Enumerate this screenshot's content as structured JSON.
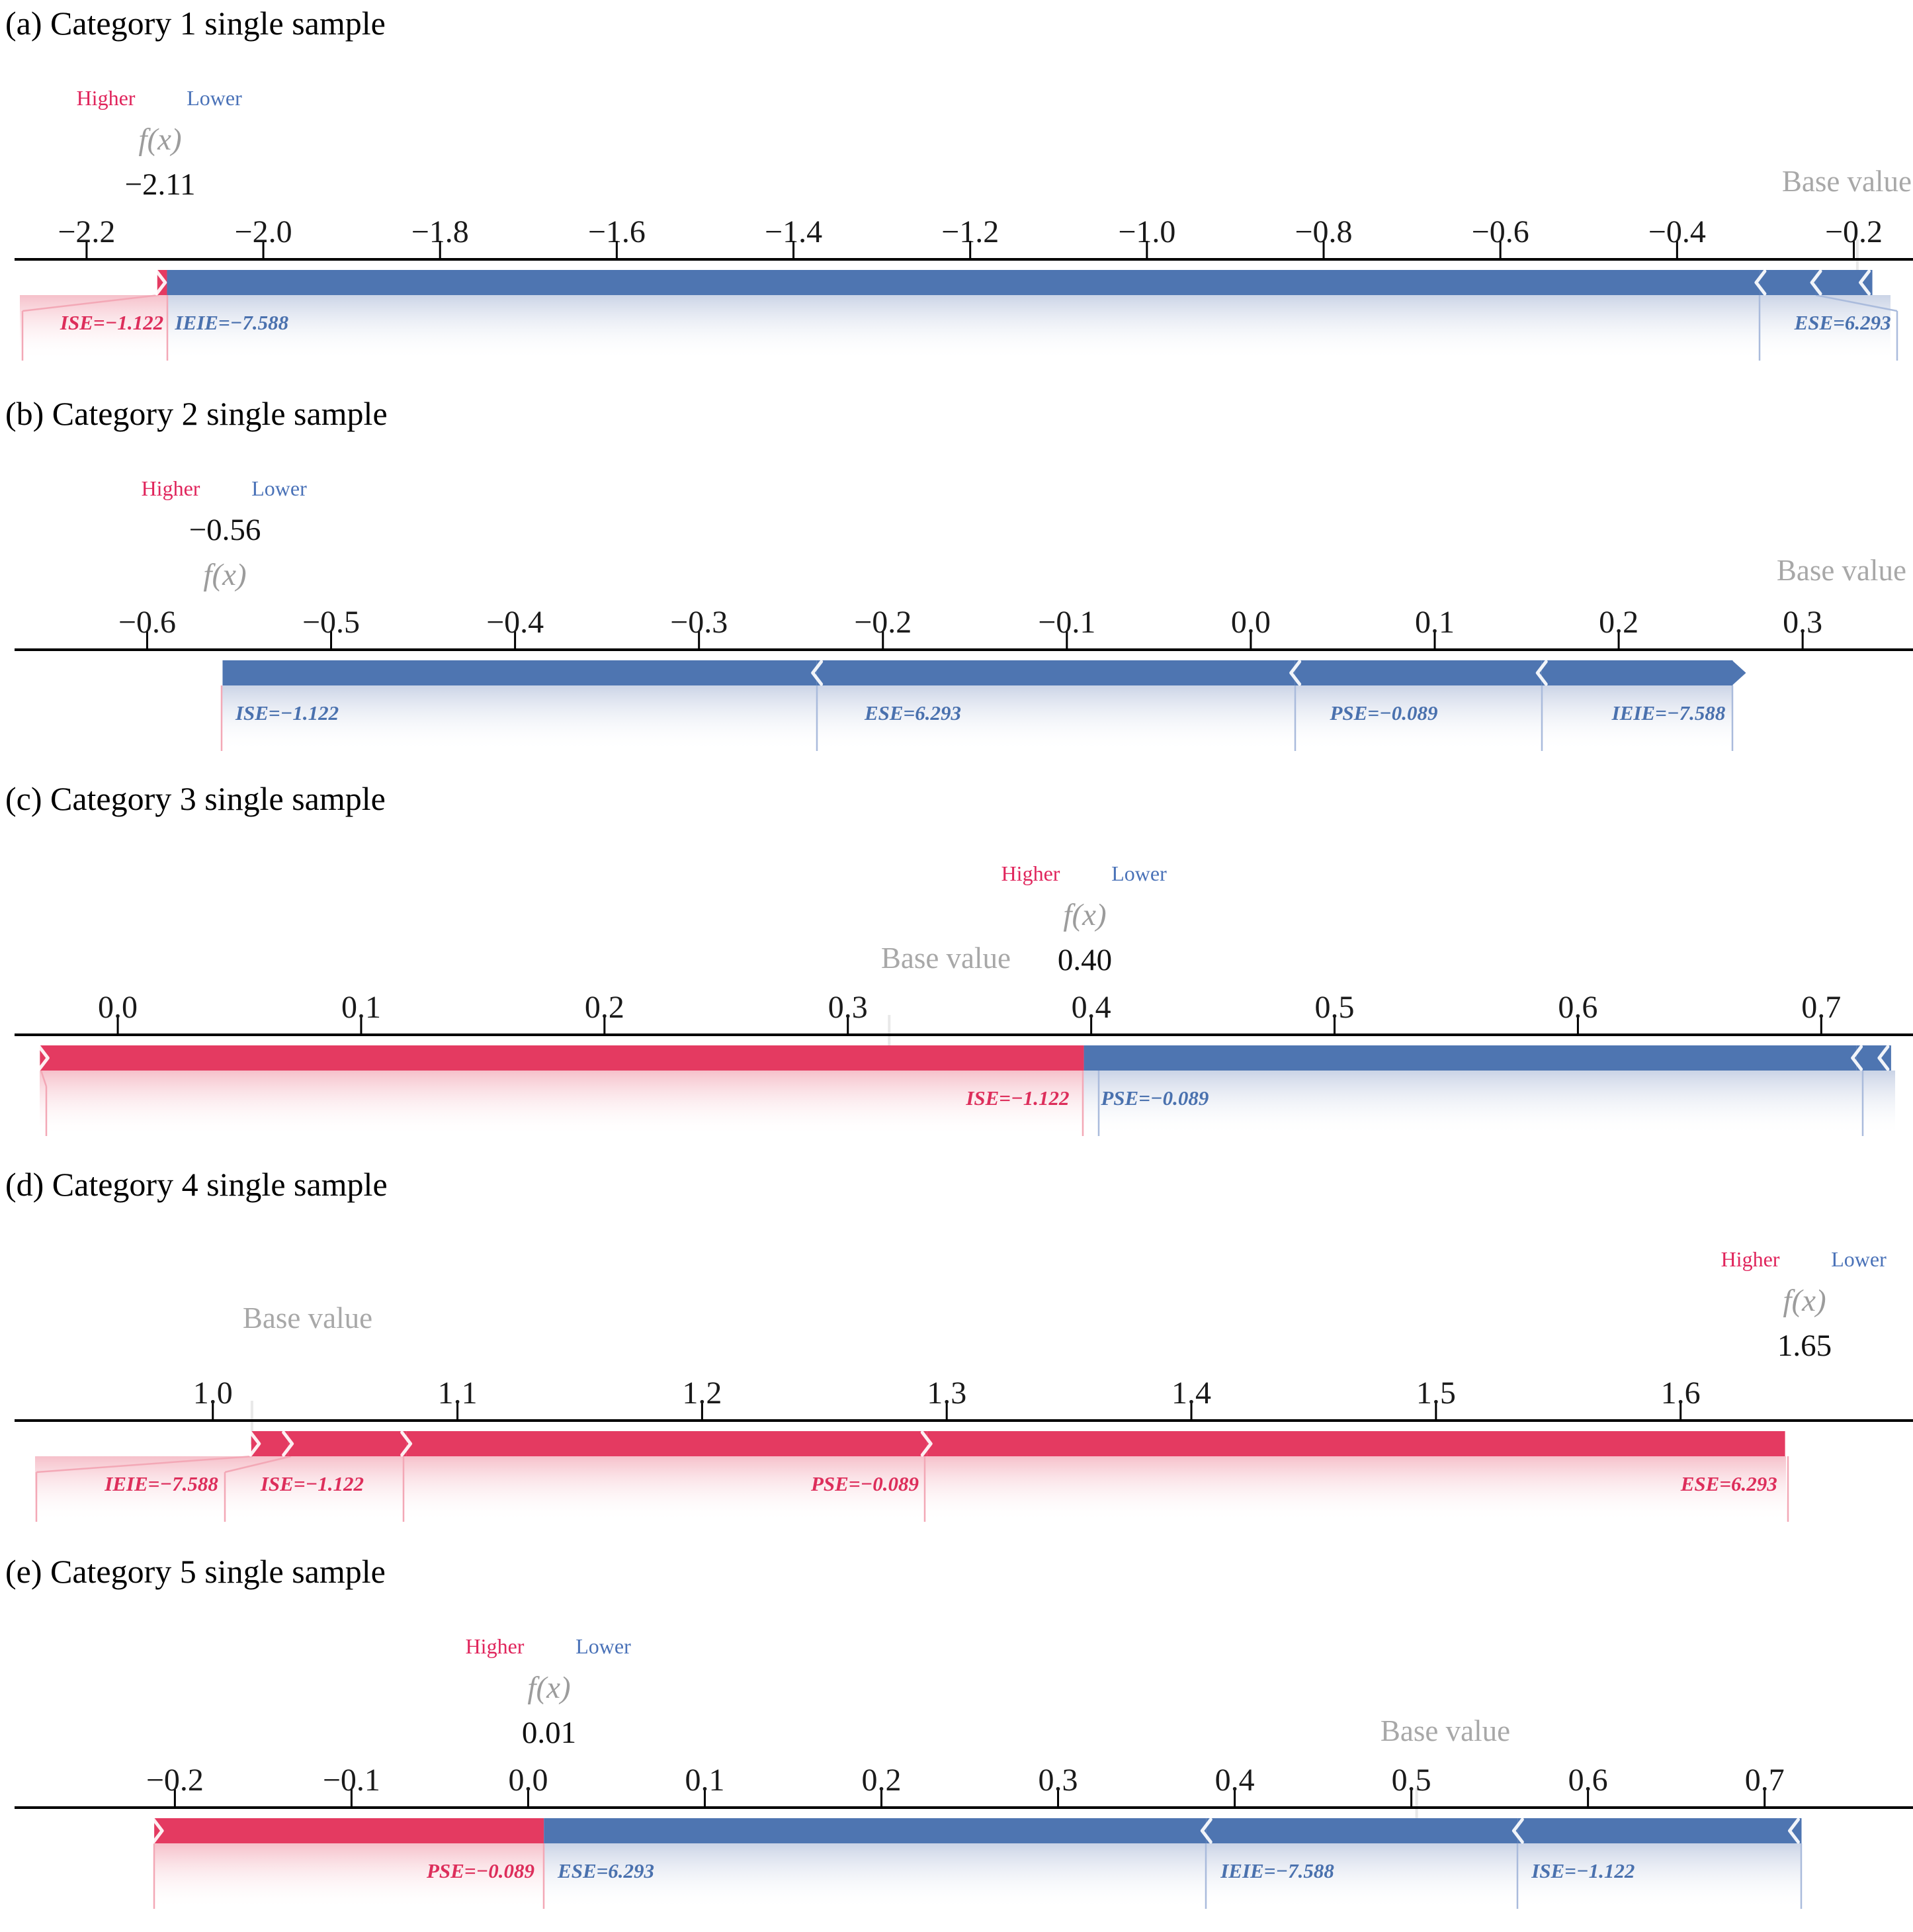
{
  "legend": {
    "higher": "Higher",
    "lower": "Lower",
    "fx_label": "f(x)",
    "base_label": "Base value"
  },
  "colors": {
    "bar_red": "#e43a61",
    "bar_blue": "#4e75b1",
    "text_red": "#dd2e5b",
    "text_blue": "#4a71ae",
    "line_red": "#f3a8b6",
    "line_blue": "#aabbdc",
    "fade_red": "rgba(238,140,158,0.55)",
    "fade_blue": "rgba(150,168,205,0.50)",
    "gray": "#a8a8a8",
    "base_marker": "#e9e9e9"
  },
  "chart_data": {
    "type": "force-plot-multi",
    "features": {
      "ISE": -1.122,
      "ESE": 6.293,
      "PSE": -0.089,
      "IEIE": -7.588
    },
    "panels": [
      {
        "title": "(a) Category 1 single sample",
        "fx": "−2.11",
        "axis": {
          "v0": -2.298,
          "v1": -0.133,
          "base_marker_v": -0.196,
          "ticks": [
            {
              "v": -2.2,
              "label": "−2.2"
            },
            {
              "v": -2.0,
              "label": "−2.0"
            },
            {
              "v": -1.8,
              "label": "−1.8"
            },
            {
              "v": -1.6,
              "label": "−1.6"
            },
            {
              "v": -1.4,
              "label": "−1.4"
            },
            {
              "v": -1.2,
              "label": "−1.2"
            },
            {
              "v": -1.0,
              "label": "−1.0"
            },
            {
              "v": -0.8,
              "label": "−0.8"
            },
            {
              "v": -0.6,
              "label": "−0.6"
            },
            {
              "v": -0.4,
              "label": "−0.4"
            },
            {
              "v": -0.2,
              "label": "−0.2"
            }
          ]
        },
        "segments": [
          {
            "label": "ISE=−1.122",
            "color": "red",
            "from": -2.12,
            "to": -2.109,
            "start": "cut",
            "text_x": -2.113,
            "text_anchor": "end"
          },
          {
            "label": "IEIE=−7.588",
            "color": "blue",
            "from": -2.109,
            "to": -0.306,
            "text_x": -2.1,
            "text_anchor": "start"
          },
          {
            "label": "ESE=6.293",
            "color": "blue",
            "from": -0.306,
            "to": -0.243,
            "text_x": -0.158,
            "text_anchor": "end"
          },
          {
            "label": "",
            "color": "blue",
            "from": -0.243,
            "to": -0.179,
            "end": "cut"
          }
        ]
      },
      {
        "title": "(b) Category 2 single sample",
        "fx": "−0.56",
        "axis": {
          "v0": -0.68,
          "v1": 0.36,
          "base_marker_v": null,
          "ticks": [
            {
              "v": -0.6,
              "label": "−0.6"
            },
            {
              "v": -0.5,
              "label": "−0.5"
            },
            {
              "v": -0.4,
              "label": "−0.4"
            },
            {
              "v": -0.3,
              "label": "−0.3"
            },
            {
              "v": -0.2,
              "label": "−0.2"
            },
            {
              "v": -0.1,
              "label": "−0.1"
            },
            {
              "v": 0.0,
              "label": "0.0"
            },
            {
              "v": 0.1,
              "label": "0.1"
            },
            {
              "v": 0.2,
              "label": "0.2"
            },
            {
              "v": 0.3,
              "label": "0.3"
            }
          ]
        },
        "segments": [
          {
            "label": "ISE=−1.122",
            "color": "blue",
            "from": -0.559,
            "to": -0.236,
            "text_x": -0.552,
            "text_anchor": "start"
          },
          {
            "label": "ESE=6.293",
            "color": "blue",
            "from": -0.236,
            "to": 0.024,
            "text_x": -0.21,
            "text_anchor": "start"
          },
          {
            "label": "PSE=−0.089",
            "color": "blue",
            "from": 0.024,
            "to": 0.158,
            "text_x": 0.043,
            "text_anchor": "start"
          },
          {
            "label": "IEIE=−7.588",
            "color": "blue",
            "from": 0.158,
            "to": 0.262,
            "end": "tip",
            "text_x": 0.258,
            "text_anchor": "end"
          }
        ]
      },
      {
        "title": "(c) Category 3 single sample",
        "fx": "0.40",
        "axis": {
          "v0": -0.0484,
          "v1": 0.7377,
          "base_marker_v": 0.317,
          "ticks": [
            {
              "v": 0.0,
              "label": "0.0"
            },
            {
              "v": 0.1,
              "label": "0.1"
            },
            {
              "v": 0.2,
              "label": "0.2"
            },
            {
              "v": 0.3,
              "label": "0.3"
            },
            {
              "v": 0.4,
              "label": "0.4"
            },
            {
              "v": 0.5,
              "label": "0.5"
            },
            {
              "v": 0.6,
              "label": "0.6"
            },
            {
              "v": 0.7,
              "label": "0.7"
            }
          ]
        },
        "segments": [
          {
            "label": "ISE=−1.122",
            "color": "red",
            "from": -0.032,
            "to": 0.397,
            "start": "cut",
            "text_x": 0.391,
            "text_anchor": "end"
          },
          {
            "label": "PSE=−0.089",
            "color": "blue",
            "from": 0.397,
            "to": 0.7145,
            "text_x": 0.404,
            "text_anchor": "start"
          },
          {
            "label": "",
            "color": "blue",
            "from": 0.7145,
            "to": 0.7287,
            "end": "cut"
          }
        ]
      },
      {
        "title": "(d) Category 4 single sample",
        "fx": "1.65",
        "axis": {
          "v0": 0.913,
          "v1": 1.695,
          "base_marker_v": 1.016,
          "ticks": [
            {
              "v": 1.0,
              "label": "1.0"
            },
            {
              "v": 1.1,
              "label": "1.1"
            },
            {
              "v": 1.2,
              "label": "1.2"
            },
            {
              "v": 1.3,
              "label": "1.3"
            },
            {
              "v": 1.4,
              "label": "1.4"
            },
            {
              "v": 1.5,
              "label": "1.5"
            },
            {
              "v": 1.6,
              "label": "1.6"
            }
          ]
        },
        "segments": [
          {
            "label": "IEIE=−7.588",
            "color": "red",
            "from": 1.0157,
            "to": 1.0308,
            "start": "cut",
            "text_x": 1.0022,
            "text_anchor": "end"
          },
          {
            "label": "ISE=−1.122",
            "color": "red",
            "from": 1.0308,
            "to": 1.0792,
            "text_x": 1.0195,
            "text_anchor": "start"
          },
          {
            "label": "PSE=−0.089",
            "color": "red",
            "from": 1.0792,
            "to": 1.2919,
            "text_x": 1.2886,
            "text_anchor": "end"
          },
          {
            "label": "ESE=6.293",
            "color": "red",
            "from": 1.2919,
            "to": 1.6427,
            "text_x": 1.6395,
            "text_anchor": "end"
          }
        ]
      },
      {
        "title": "(e) Category 5 single sample",
        "fx": "0.01",
        "axis": {
          "v0": -0.299,
          "v1": 0.784,
          "base_marker_v": 0.503,
          "ticks": [
            {
              "v": -0.2,
              "label": "−0.2"
            },
            {
              "v": -0.1,
              "label": "−0.1"
            },
            {
              "v": 0.0,
              "label": "0.0"
            },
            {
              "v": 0.1,
              "label": "0.1"
            },
            {
              "v": 0.2,
              "label": "0.2"
            },
            {
              "v": 0.3,
              "label": "0.3"
            },
            {
              "v": 0.4,
              "label": "0.4"
            },
            {
              "v": 0.5,
              "label": "0.5"
            },
            {
              "v": 0.6,
              "label": "0.6"
            },
            {
              "v": 0.7,
              "label": "0.7"
            }
          ]
        },
        "segments": [
          {
            "label": "PSE=−0.089",
            "color": "red",
            "from": -0.2117,
            "to": 0.0089,
            "start": "cut",
            "text_x": 0.0036,
            "text_anchor": "end"
          },
          {
            "label": "ESE=6.293",
            "color": "blue",
            "from": 0.0089,
            "to": 0.3838,
            "text_x": 0.0167,
            "text_anchor": "start"
          },
          {
            "label": "IEIE=−7.588",
            "color": "blue",
            "from": 0.3838,
            "to": 0.5602,
            "text_x": 0.392,
            "text_anchor": "start"
          },
          {
            "label": "ISE=−1.122",
            "color": "blue",
            "from": 0.5602,
            "to": 0.7209,
            "end": "cut",
            "text_x": 0.568,
            "text_anchor": "start"
          }
        ]
      }
    ]
  }
}
